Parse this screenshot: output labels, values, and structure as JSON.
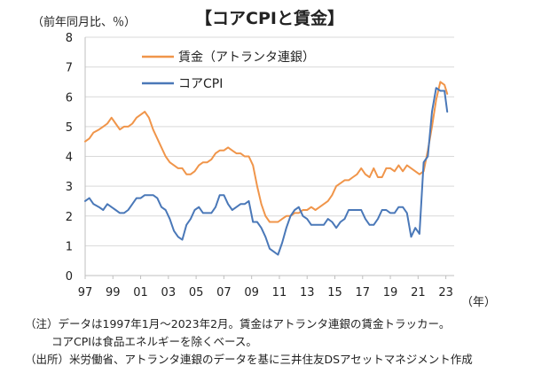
{
  "chart_data": {
    "type": "line",
    "title": "【コアCPIと賃金】",
    "ylabel": "（前年同月比、％）",
    "xlabel": "（年）",
    "ylim": [
      0,
      8
    ],
    "yticks": [
      "0",
      "1",
      "2",
      "3",
      "4",
      "5",
      "6",
      "7",
      "8"
    ],
    "xticks": [
      "97",
      "99",
      "01",
      "03",
      "05",
      "07",
      "09",
      "11",
      "13",
      "15",
      "17",
      "19",
      "21",
      "23"
    ],
    "legend_position": "top-center",
    "series": [
      {
        "name": "賃金（アトランタ連銀）",
        "color": "#f0954a",
        "points": [
          [
            1997.0,
            4.5
          ],
          [
            1997.3,
            4.6
          ],
          [
            1997.6,
            4.8
          ],
          [
            1998.0,
            4.9
          ],
          [
            1998.3,
            5.0
          ],
          [
            1998.6,
            5.1
          ],
          [
            1998.9,
            5.3
          ],
          [
            1999.2,
            5.1
          ],
          [
            1999.5,
            4.9
          ],
          [
            1999.8,
            5.0
          ],
          [
            2000.1,
            5.0
          ],
          [
            2000.4,
            5.1
          ],
          [
            2000.7,
            5.3
          ],
          [
            2001.0,
            5.4
          ],
          [
            2001.3,
            5.5
          ],
          [
            2001.6,
            5.3
          ],
          [
            2001.9,
            4.9
          ],
          [
            2002.2,
            4.6
          ],
          [
            2002.5,
            4.3
          ],
          [
            2002.8,
            4.0
          ],
          [
            2003.1,
            3.8
          ],
          [
            2003.4,
            3.7
          ],
          [
            2003.7,
            3.6
          ],
          [
            2004.0,
            3.6
          ],
          [
            2004.3,
            3.4
          ],
          [
            2004.6,
            3.4
          ],
          [
            2004.9,
            3.5
          ],
          [
            2005.2,
            3.7
          ],
          [
            2005.5,
            3.8
          ],
          [
            2005.8,
            3.8
          ],
          [
            2006.1,
            3.9
          ],
          [
            2006.4,
            4.1
          ],
          [
            2006.7,
            4.2
          ],
          [
            2007.0,
            4.2
          ],
          [
            2007.3,
            4.3
          ],
          [
            2007.6,
            4.2
          ],
          [
            2007.9,
            4.1
          ],
          [
            2008.2,
            4.1
          ],
          [
            2008.5,
            4.0
          ],
          [
            2008.8,
            4.0
          ],
          [
            2009.1,
            3.7
          ],
          [
            2009.4,
            3.0
          ],
          [
            2009.7,
            2.4
          ],
          [
            2010.0,
            2.0
          ],
          [
            2010.3,
            1.8
          ],
          [
            2010.6,
            1.8
          ],
          [
            2010.9,
            1.8
          ],
          [
            2011.2,
            1.9
          ],
          [
            2011.5,
            2.0
          ],
          [
            2011.8,
            2.0
          ],
          [
            2012.1,
            2.1
          ],
          [
            2012.4,
            2.1
          ],
          [
            2012.7,
            2.2
          ],
          [
            2013.0,
            2.2
          ],
          [
            2013.3,
            2.3
          ],
          [
            2013.6,
            2.2
          ],
          [
            2013.9,
            2.3
          ],
          [
            2014.2,
            2.4
          ],
          [
            2014.5,
            2.5
          ],
          [
            2014.8,
            2.7
          ],
          [
            2015.1,
            3.0
          ],
          [
            2015.4,
            3.1
          ],
          [
            2015.7,
            3.2
          ],
          [
            2016.0,
            3.2
          ],
          [
            2016.3,
            3.3
          ],
          [
            2016.6,
            3.4
          ],
          [
            2016.9,
            3.6
          ],
          [
            2017.2,
            3.4
          ],
          [
            2017.5,
            3.3
          ],
          [
            2017.8,
            3.6
          ],
          [
            2018.1,
            3.3
          ],
          [
            2018.4,
            3.3
          ],
          [
            2018.7,
            3.6
          ],
          [
            2019.0,
            3.6
          ],
          [
            2019.3,
            3.5
          ],
          [
            2019.6,
            3.7
          ],
          [
            2019.9,
            3.5
          ],
          [
            2020.2,
            3.7
          ],
          [
            2020.5,
            3.6
          ],
          [
            2020.8,
            3.5
          ],
          [
            2021.1,
            3.4
          ],
          [
            2021.4,
            3.5
          ],
          [
            2021.7,
            4.2
          ],
          [
            2022.0,
            5.0
          ],
          [
            2022.3,
            5.9
          ],
          [
            2022.6,
            6.5
          ],
          [
            2022.9,
            6.4
          ],
          [
            2023.1,
            6.1
          ]
        ]
      },
      {
        "name": "コアCPI",
        "color": "#4a78b8",
        "points": [
          [
            1997.0,
            2.5
          ],
          [
            1997.3,
            2.6
          ],
          [
            1997.6,
            2.4
          ],
          [
            1998.0,
            2.3
          ],
          [
            1998.3,
            2.2
          ],
          [
            1998.6,
            2.4
          ],
          [
            1998.9,
            2.3
          ],
          [
            1999.2,
            2.2
          ],
          [
            1999.5,
            2.1
          ],
          [
            1999.8,
            2.1
          ],
          [
            2000.1,
            2.2
          ],
          [
            2000.4,
            2.4
          ],
          [
            2000.7,
            2.6
          ],
          [
            2001.0,
            2.6
          ],
          [
            2001.3,
            2.7
          ],
          [
            2001.6,
            2.7
          ],
          [
            2001.9,
            2.7
          ],
          [
            2002.2,
            2.6
          ],
          [
            2002.5,
            2.3
          ],
          [
            2002.8,
            2.2
          ],
          [
            2003.1,
            1.9
          ],
          [
            2003.4,
            1.5
          ],
          [
            2003.7,
            1.3
          ],
          [
            2004.0,
            1.2
          ],
          [
            2004.3,
            1.7
          ],
          [
            2004.6,
            1.9
          ],
          [
            2004.9,
            2.2
          ],
          [
            2005.2,
            2.3
          ],
          [
            2005.5,
            2.1
          ],
          [
            2005.8,
            2.1
          ],
          [
            2006.1,
            2.1
          ],
          [
            2006.4,
            2.3
          ],
          [
            2006.7,
            2.7
          ],
          [
            2007.0,
            2.7
          ],
          [
            2007.3,
            2.4
          ],
          [
            2007.6,
            2.2
          ],
          [
            2007.9,
            2.3
          ],
          [
            2008.2,
            2.4
          ],
          [
            2008.5,
            2.4
          ],
          [
            2008.8,
            2.5
          ],
          [
            2009.1,
            1.8
          ],
          [
            2009.4,
            1.8
          ],
          [
            2009.7,
            1.6
          ],
          [
            2010.0,
            1.3
          ],
          [
            2010.3,
            0.9
          ],
          [
            2010.6,
            0.8
          ],
          [
            2010.9,
            0.7
          ],
          [
            2011.2,
            1.1
          ],
          [
            2011.5,
            1.6
          ],
          [
            2011.8,
            2.0
          ],
          [
            2012.1,
            2.2
          ],
          [
            2012.4,
            2.3
          ],
          [
            2012.7,
            2.0
          ],
          [
            2013.0,
            1.9
          ],
          [
            2013.3,
            1.7
          ],
          [
            2013.6,
            1.7
          ],
          [
            2013.9,
            1.7
          ],
          [
            2014.2,
            1.7
          ],
          [
            2014.5,
            1.9
          ],
          [
            2014.8,
            1.8
          ],
          [
            2015.1,
            1.6
          ],
          [
            2015.4,
            1.8
          ],
          [
            2015.7,
            1.9
          ],
          [
            2016.0,
            2.2
          ],
          [
            2016.3,
            2.2
          ],
          [
            2016.6,
            2.2
          ],
          [
            2016.9,
            2.2
          ],
          [
            2017.2,
            1.9
          ],
          [
            2017.5,
            1.7
          ],
          [
            2017.8,
            1.7
          ],
          [
            2018.1,
            1.9
          ],
          [
            2018.4,
            2.2
          ],
          [
            2018.7,
            2.2
          ],
          [
            2019.0,
            2.1
          ],
          [
            2019.3,
            2.1
          ],
          [
            2019.6,
            2.3
          ],
          [
            2019.9,
            2.3
          ],
          [
            2020.2,
            2.1
          ],
          [
            2020.5,
            1.3
          ],
          [
            2020.8,
            1.6
          ],
          [
            2021.1,
            1.4
          ],
          [
            2021.4,
            3.8
          ],
          [
            2021.7,
            4.0
          ],
          [
            2022.0,
            5.5
          ],
          [
            2022.3,
            6.3
          ],
          [
            2022.6,
            6.2
          ],
          [
            2022.9,
            6.2
          ],
          [
            2023.1,
            5.5
          ]
        ]
      }
    ]
  },
  "notes": [
    "（注）データは1997年1月～2023年2月。賃金はアトランタ連銀の賃金トラッカー。",
    "コアCPIは食品エネルギーを除くベース。",
    "（出所）米労働省、アトランタ連銀のデータを基に三井住友DSアセットマネジメント作成"
  ]
}
